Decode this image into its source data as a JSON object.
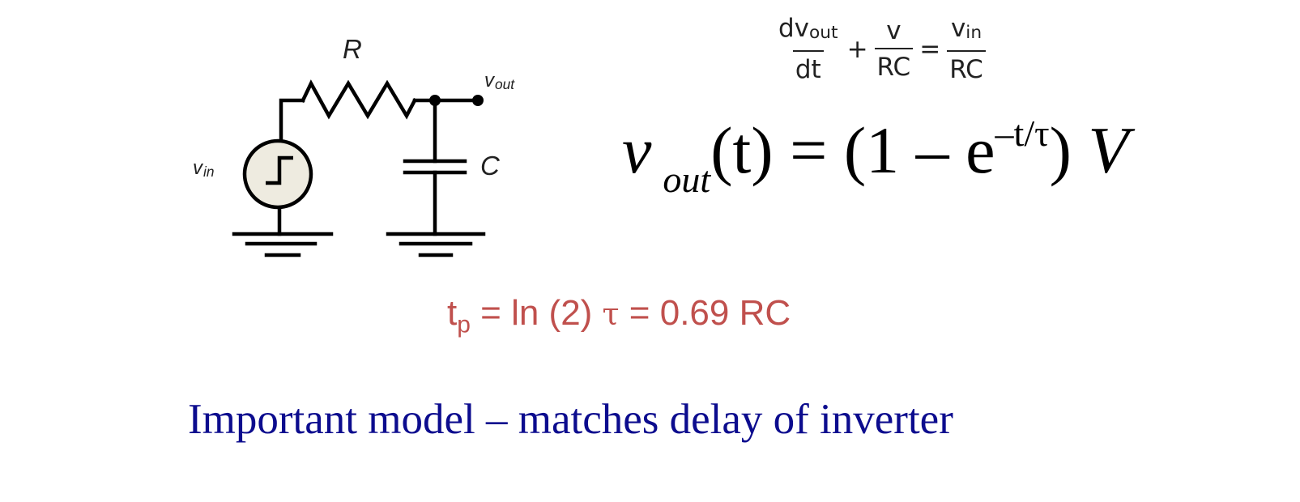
{
  "circuit": {
    "resistor_label": "R",
    "capacitor_label": "C",
    "input_label": {
      "main": "v",
      "sub": "in"
    },
    "output_label": {
      "main": "v",
      "sub": "out"
    }
  },
  "ode": {
    "term1": {
      "num_main": "dv",
      "num_sub": "out",
      "den": "dt"
    },
    "plus": "+",
    "term2": {
      "num": "v",
      "den": "RC"
    },
    "equals": "=",
    "term3": {
      "num_main": "v",
      "num_sub": "in",
      "den": "RC"
    }
  },
  "response": {
    "lhs_main": "v",
    "lhs_sub": "out",
    "lhs_arg": "(t)",
    "equals": "=",
    "open": "(1 – e",
    "exponent": "–t/τ",
    "close": ")",
    "rhs_var": "V"
  },
  "delay": {
    "lhs_main": "t",
    "lhs_sub": "p",
    "mid": " = ln (2) ",
    "tau": "τ",
    "rhs": " = 0.69 RC"
  },
  "caption": "Important model – matches delay of inverter",
  "colors": {
    "delay_text": "#c0504d",
    "caption_text": "#0c0c8e",
    "source_fill": "#eeebe0"
  }
}
